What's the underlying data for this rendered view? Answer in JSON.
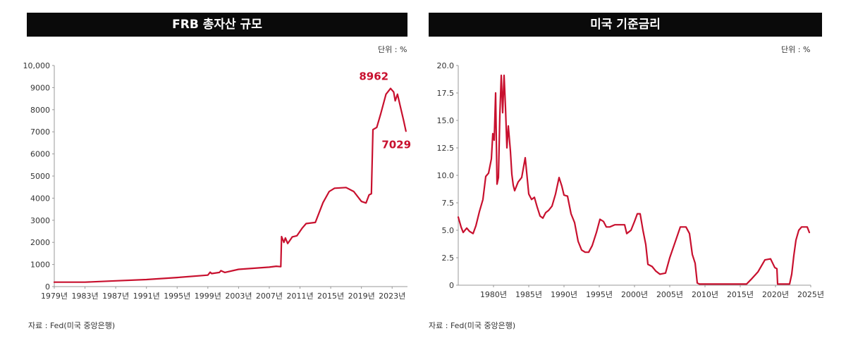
{
  "colors": {
    "line": "#c8102e",
    "title_bg": "#0a0a0a",
    "title_text": "#ffffff",
    "axis": "#999999"
  },
  "chart_data": [
    {
      "type": "line",
      "title": "FRB 총자산 규모",
      "unit_label": "단위 : %",
      "source": "자료 : Fed(미국 중앙은행)",
      "xlabel": "",
      "ylabel": "",
      "xlim": [
        1979,
        2025
      ],
      "ylim": [
        0,
        10000
      ],
      "y_ticks": [
        0,
        1000,
        2000,
        3000,
        4000,
        5000,
        6000,
        7000,
        8000,
        9000,
        10000
      ],
      "y_tick_labels": [
        "0",
        "1000",
        "2000",
        "3000",
        "4000",
        "5000",
        "6000",
        "7000",
        "8000",
        "9000",
        "10,000"
      ],
      "x_ticks": [
        1979,
        1983,
        1987,
        1991,
        1995,
        1999,
        2003,
        2007,
        2011,
        2015,
        2019,
        2023
      ],
      "x_tick_labels": [
        "1979년",
        "1983년",
        "1987년",
        "1991년",
        "1995년",
        "1999년",
        "2003년",
        "2007년",
        "2011년",
        "2015년",
        "2019년",
        "2023년"
      ],
      "annotations": [
        {
          "text": "8962",
          "x": 2021.9,
          "y": 8962
        },
        {
          "text": "7029",
          "x": 2024.1,
          "y": 7029
        }
      ],
      "series": [
        {
          "name": "FRB 총자산",
          "x": [
            1979,
            1983,
            1987,
            1991,
            1995,
            1999,
            1999.3,
            1999.5,
            2000.5,
            2000.7,
            2001.2,
            2003,
            2007,
            2007.9,
            2008.5,
            2008.6,
            2008.9,
            2009.1,
            2009.4,
            2009.7,
            2010,
            2010.6,
            2011.3,
            2011.8,
            2013,
            2014,
            2014.8,
            2015.5,
            2017,
            2018,
            2019,
            2019.6,
            2020,
            2020.3,
            2020.5,
            2021,
            2021.5,
            2022.2,
            2022.8,
            2023.2,
            2023.4,
            2023.7,
            2024.1,
            2024.5,
            2024.8
          ],
          "values": [
            200,
            200,
            260,
            320,
            410,
            520,
            650,
            590,
            640,
            720,
            640,
            780,
            880,
            920,
            900,
            2260,
            2000,
            2200,
            1950,
            2100,
            2250,
            2300,
            2650,
            2850,
            2900,
            3800,
            4300,
            4450,
            4480,
            4300,
            3850,
            3780,
            4150,
            4200,
            7100,
            7200,
            7800,
            8700,
            8962,
            8800,
            8400,
            8700,
            8100,
            7500,
            7029
          ]
        }
      ]
    },
    {
      "type": "line",
      "title": "미국 기준금리",
      "unit_label": "단위 : %",
      "source": "자료 : Fed(미국 중앙은행)",
      "xlabel": "",
      "ylabel": "",
      "xlim": [
        1975,
        2025
      ],
      "ylim": [
        0,
        20
      ],
      "y_ticks": [
        0,
        2.5,
        5,
        7.5,
        10,
        12.5,
        15,
        17.5,
        20
      ],
      "y_tick_labels": [
        "0",
        "2.5",
        "5.0",
        "7.5",
        "10.0",
        "12.5",
        "15.0",
        "17.5",
        "20.0"
      ],
      "x_ticks": [
        1980,
        1985,
        1990,
        1995,
        2000,
        2005,
        2010,
        2015,
        2020,
        2025
      ],
      "x_tick_labels": [
        "1980년",
        "1985년",
        "1990년",
        "1995년",
        "2000년",
        "2005년",
        "2010년",
        "2015년",
        "2020년",
        "2025년"
      ],
      "annotations": [],
      "series": [
        {
          "name": "미국 기준금리",
          "x": [
            1975,
            1975.4,
            1975.7,
            1976.2,
            1976.6,
            1977.1,
            1977.5,
            1978,
            1978.5,
            1978.9,
            1979.3,
            1979.7,
            1979.9,
            1980.1,
            1980.3,
            1980.5,
            1980.7,
            1980.9,
            1981.1,
            1981.3,
            1981.5,
            1981.7,
            1981.9,
            1982.1,
            1982.4,
            1982.6,
            1982.8,
            1983,
            1983.5,
            1984,
            1984.5,
            1984.7,
            1985,
            1985.4,
            1985.8,
            1986.2,
            1986.6,
            1987,
            1987.4,
            1987.8,
            1988.3,
            1988.8,
            1989.3,
            1989.7,
            1990,
            1990.5,
            1991,
            1991.5,
            1992,
            1992.5,
            1993,
            1993.5,
            1994,
            1994.6,
            1995.1,
            1995.6,
            1996,
            1996.5,
            1997.2,
            1998,
            1998.6,
            1998.9,
            1999.5,
            2000,
            2000.4,
            2000.8,
            2001.2,
            2001.6,
            2001.9,
            2002.5,
            2003,
            2003.6,
            2004.4,
            2005,
            2005.7,
            2006.5,
            2007.3,
            2007.8,
            2008.2,
            2008.6,
            2008.9,
            2009.2,
            2011,
            2015.9,
            2016.5,
            2017.5,
            2018.5,
            2019.3,
            2019.6,
            2019.9,
            2020.2,
            2020.3,
            2022,
            2022.3,
            2022.6,
            2022.9,
            2023.3,
            2023.7,
            2024.5,
            2024.8
          ],
          "values": [
            6.2,
            5.3,
            4.8,
            5.2,
            4.9,
            4.7,
            5.4,
            6.7,
            7.8,
            9.9,
            10.2,
            11.5,
            13.8,
            13.2,
            17.5,
            9.2,
            9.8,
            15.5,
            19.1,
            15.7,
            19.1,
            16.2,
            12.5,
            14.5,
            12.2,
            10.1,
            9.1,
            8.6,
            9.4,
            9.8,
            11.6,
            10.3,
            8.3,
            7.8,
            8.0,
            7.1,
            6.3,
            6.1,
            6.6,
            6.8,
            7.2,
            8.3,
            9.8,
            9.0,
            8.2,
            8.1,
            6.5,
            5.7,
            4.0,
            3.2,
            3.0,
            3.0,
            3.6,
            4.8,
            6.0,
            5.8,
            5.3,
            5.3,
            5.5,
            5.5,
            5.5,
            4.7,
            5.0,
            5.8,
            6.5,
            6.5,
            5.0,
            3.7,
            1.9,
            1.7,
            1.3,
            1.0,
            1.1,
            2.5,
            3.8,
            5.3,
            5.3,
            4.7,
            2.8,
            2.0,
            0.2,
            0.1,
            0.1,
            0.1,
            0.5,
            1.2,
            2.3,
            2.4,
            2.0,
            1.6,
            1.5,
            0.1,
            0.1,
            1.0,
            2.7,
            4.1,
            5.0,
            5.3,
            5.3,
            4.8
          ]
        }
      ]
    }
  ]
}
